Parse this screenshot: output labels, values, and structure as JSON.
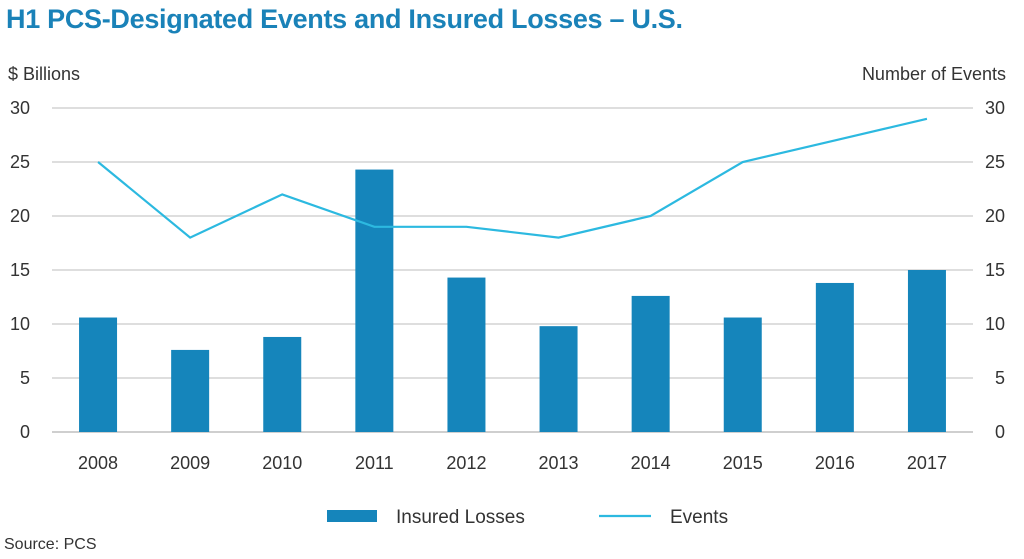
{
  "chart_data": {
    "type": "bar+line",
    "title": "H1 PCS-Designated Events and Insured Losses – U.S.",
    "ylabel_left": "$ Billions",
    "ylabel_right": "Number of Events",
    "source": "Source: PCS",
    "categories": [
      "2008",
      "2009",
      "2010",
      "2011",
      "2012",
      "2013",
      "2014",
      "2015",
      "2016",
      "2017"
    ],
    "ylim_left": [
      0,
      30
    ],
    "ylim_right": [
      0,
      30
    ],
    "yticks": [
      "0",
      "5",
      "10",
      "15",
      "20",
      "25",
      "30"
    ],
    "grid": true,
    "legend_position": "bottom",
    "series": [
      {
        "name": "Insured Losses",
        "type": "bar",
        "axis": "left",
        "color": "#1585bb",
        "values": [
          10.6,
          7.6,
          8.8,
          24.3,
          14.3,
          9.8,
          12.6,
          10.6,
          13.8,
          15.0
        ]
      },
      {
        "name": "Events",
        "type": "line",
        "axis": "right",
        "color": "#2cb9e0",
        "values": [
          25,
          18,
          22,
          19,
          19,
          18,
          20,
          25,
          27,
          29
        ]
      }
    ]
  }
}
